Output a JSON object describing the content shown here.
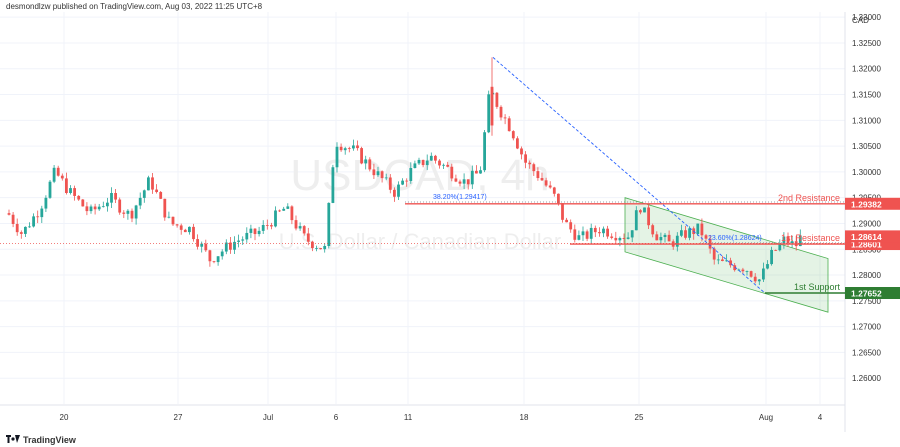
{
  "header": {
    "published_text": "desmondlzw published on TradingView.com, Aug 03, 2022 11:25 UTC+8"
  },
  "footer": {
    "brand": "TradingView"
  },
  "watermark": {
    "line1": "USDCAD, 4h",
    "line2": "U.S. Dollar / Canadian Dollar"
  },
  "chart_data": {
    "type": "candlestick",
    "currency": "CAD",
    "ylim": [
      1.255,
      1.331
    ],
    "y_ticks": [
      "1.33000",
      "1.32500",
      "1.32000",
      "1.31500",
      "1.31000",
      "1.30500",
      "1.30000",
      "1.29500",
      "1.29000",
      "1.28500",
      "1.28000",
      "1.27500",
      "1.27000",
      "1.26500",
      "1.26000"
    ],
    "x_ticks": [
      "20",
      "27",
      "Jul",
      "6",
      "11",
      "18",
      "25",
      "Aug",
      "4"
    ],
    "levels": [
      {
        "name": "2nd Resistance",
        "value": 1.29382,
        "price_label": "1.29382",
        "color": "#ef5350"
      },
      {
        "name": "1st Resistance",
        "value": 1.28601,
        "price_label": "1.28601",
        "color": "#ef5350"
      },
      {
        "name": "1st Support",
        "value": 1.27652,
        "price_label": "1.27652",
        "color": "#2e7d32"
      }
    ],
    "current_price": {
      "value": 1.28614,
      "label": "1.28614",
      "color": "#ef5350"
    },
    "fib_labels": [
      {
        "text": "38.20%(1.29417)",
        "value": 1.29417
      },
      {
        "text": "23.60%(1.28624)",
        "value": 1.28624
      }
    ],
    "colors": {
      "up": "#26a69a",
      "down": "#ef5350",
      "channel": "#4caf50",
      "trend": "#2962ff"
    }
  }
}
